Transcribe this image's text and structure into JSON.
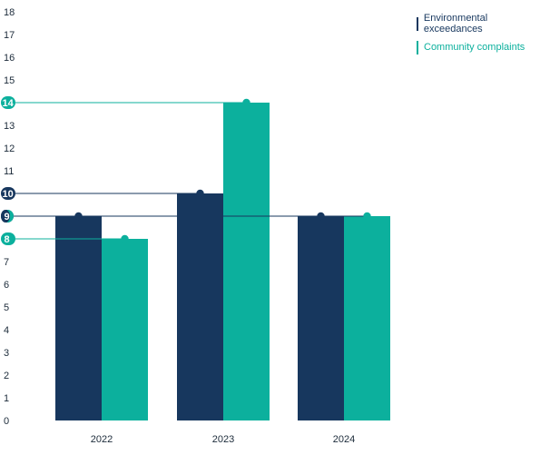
{
  "chart_data": {
    "type": "bar",
    "categories": [
      "2022",
      "2023",
      "2024"
    ],
    "series": [
      {
        "name": "Environmental exceedances",
        "values": [
          9,
          10,
          9
        ],
        "color": "#17375e"
      },
      {
        "name": "Community complaints",
        "values": [
          8,
          14,
          9
        ],
        "color": "#0cb09d"
      }
    ],
    "y_ticks": [
      0,
      1,
      2,
      3,
      4,
      5,
      6,
      7,
      8,
      9,
      10,
      11,
      12,
      13,
      14,
      15,
      16,
      17,
      18
    ],
    "ylim": [
      0,
      18
    ],
    "highlighted_values": [
      {
        "value": 14,
        "series": 1
      },
      {
        "value": 10,
        "series": 0
      },
      {
        "value": 9,
        "series": 2
      },
      {
        "value": 8,
        "series": 1
      }
    ],
    "title": "",
    "xlabel": "",
    "ylabel": "",
    "legend_position": "top-right",
    "grid": false
  }
}
